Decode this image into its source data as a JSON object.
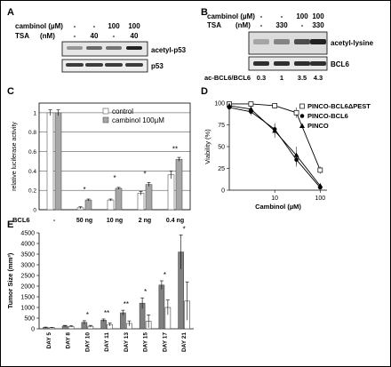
{
  "panels": {
    "A": {
      "letter": "A",
      "rows": [
        {
          "label": "cambinol (µM)",
          "values": [
            "-",
            "-",
            "100",
            "100"
          ]
        },
        {
          "label": "TSA",
          "unit": "(nM)",
          "values": [
            "-",
            "40",
            "-",
            "40"
          ]
        }
      ],
      "blots": [
        "acetyl-p53",
        "p53"
      ]
    },
    "B": {
      "letter": "B",
      "rows": [
        {
          "label": "cambinol (µM)",
          "values": [
            "-",
            "-",
            "100",
            "100"
          ]
        },
        {
          "label": "TSA",
          "unit": "(nM)",
          "values": [
            "-",
            "330",
            "-",
            "330"
          ]
        }
      ],
      "blots": [
        "acetyl-lysine",
        "BCL6"
      ],
      "ratio_label": "ac-BCL6/BCL6",
      "ratios": [
        "0.3",
        "1",
        "3.5",
        "4.3"
      ]
    }
  },
  "chart_data": [
    {
      "panel": "C",
      "type": "bar",
      "ylabel": "relative luciferase activity",
      "ylim": [
        0,
        1.1
      ],
      "yticks": [
        "0",
        "0.2",
        "0.4",
        "0.6",
        "0.8",
        "1"
      ],
      "xlabel": "BCL6",
      "categories": [
        "-",
        "50 ng",
        "10 ng",
        "2 ng",
        "0.4 ng"
      ],
      "series": [
        {
          "name": "control",
          "color": "#ffffff",
          "values": [
            1.0,
            0.02,
            0.1,
            0.17,
            0.36
          ],
          "errors": [
            0.03,
            0.01,
            0.01,
            0.02,
            0.04
          ]
        },
        {
          "name": "cambinol 100µM",
          "color": "#a6a6a6",
          "values": [
            1.0,
            0.1,
            0.22,
            0.26,
            0.52
          ],
          "errors": [
            0.03,
            0.01,
            0.01,
            0.02,
            0.02
          ]
        }
      ],
      "significance": [
        "",
        "*",
        "*",
        "*",
        "**"
      ],
      "legend": "top-right"
    },
    {
      "panel": "D",
      "type": "line",
      "ylabel": "Viability (%)",
      "xlabel": "Cambinol (µM)",
      "xscale": "log",
      "ylim": [
        0,
        100
      ],
      "yticks": [
        "0",
        "25",
        "50",
        "75",
        "100"
      ],
      "xticks": [
        "10",
        "100"
      ],
      "series": [
        {
          "name": "PINCO-BCL6ΔPEST",
          "marker": "open-square",
          "x": [
            1,
            3,
            10,
            30,
            100
          ],
          "y": [
            99,
            99,
            97,
            89,
            23
          ],
          "err": [
            2,
            2,
            3,
            6,
            4
          ]
        },
        {
          "name": "PINCO-BCL6",
          "marker": "filled-circle",
          "x": [
            1,
            3,
            10,
            30,
            100
          ],
          "y": [
            95,
            90,
            70,
            35,
            3
          ],
          "err": [
            3,
            4,
            7,
            8,
            2
          ]
        },
        {
          "name": "PINCO",
          "marker": "filled-triangle",
          "x": [
            1,
            3,
            10,
            30,
            100
          ],
          "y": [
            97,
            93,
            68,
            40,
            5
          ],
          "err": [
            3,
            4,
            8,
            10,
            3
          ]
        }
      ],
      "legend": "top-right"
    },
    {
      "panel": "E",
      "type": "bar",
      "ylabel": "Tumor Size (mm³)",
      "ylim": [
        0,
        4500
      ],
      "yticks": [
        "0",
        "500",
        "1000",
        "1500",
        "2000",
        "2500",
        "3000",
        "3500",
        "4000",
        "4500"
      ],
      "categories": [
        "DAY 5",
        "DAY 8",
        "DAY 10",
        "DAY 11",
        "DAY 13",
        "DAY 15",
        "DAY 17",
        "DAY 21"
      ],
      "series": [
        {
          "name": "",
          "color": "#808080",
          "values": [
            60,
            130,
            300,
            400,
            750,
            1200,
            2050,
            3600
          ],
          "errors": [
            20,
            30,
            80,
            60,
            120,
            250,
            200,
            800
          ]
        },
        {
          "name": "",
          "color": "#ffffff",
          "values": [
            50,
            110,
            120,
            200,
            250,
            350,
            1000,
            1300
          ],
          "errors": [
            15,
            30,
            40,
            70,
            120,
            300,
            350,
            900
          ]
        }
      ],
      "significance": [
        "",
        "",
        "*",
        "**",
        "**",
        "*",
        "*",
        "*"
      ]
    }
  ],
  "labels": {
    "C": "C",
    "D": "D",
    "E": "E",
    "legend_C": [
      "control",
      "cambinol 100µM"
    ],
    "legend_D": [
      "PINCO-BCL6ΔPEST",
      "PINCO-BCL6",
      "PINCO"
    ]
  }
}
